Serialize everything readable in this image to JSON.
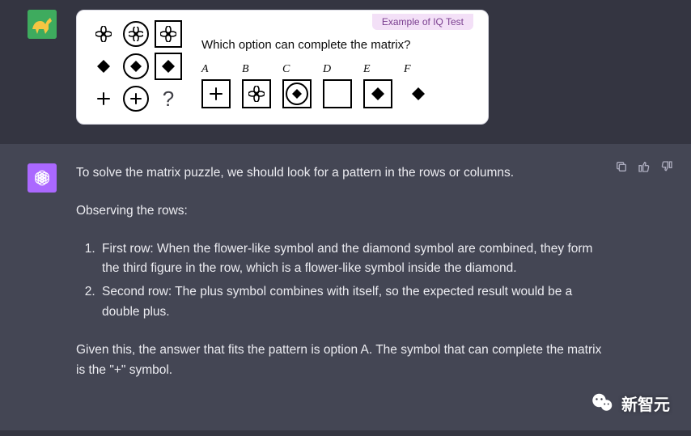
{
  "colors": {
    "page_bg": "#343541",
    "assistant_bg": "#444654",
    "text": "#ececf1",
    "card_bg": "#ffffff",
    "card_border": "#d9d9e3",
    "badge_bg": "#f3e0f7",
    "badge_text": "#7a3e8f",
    "user_avatar_bg": "#3eab5e",
    "assistant_avatar_bg": "#ab68ff",
    "icon_muted": "#acacbe",
    "shape_stroke": "#000000",
    "shape_fill": "#000000"
  },
  "iq": {
    "badge": "Example of IQ Test",
    "question": "Which option can complete the matrix?",
    "matrix_question_mark": "?",
    "grid": [
      [
        {
          "shape": "flower",
          "style": "plain"
        },
        {
          "shape": "flower",
          "style": "circled"
        },
        {
          "shape": "flower",
          "style": "boxed"
        }
      ],
      [
        {
          "shape": "diamond",
          "style": "plain"
        },
        {
          "shape": "diamond",
          "style": "circled"
        },
        {
          "shape": "diamond",
          "style": "boxed"
        }
      ],
      [
        {
          "shape": "plus",
          "style": "plain"
        },
        {
          "shape": "plus",
          "style": "circled"
        },
        {
          "shape": "question",
          "style": "plain"
        }
      ]
    ],
    "options": [
      {
        "label": "A",
        "shape": "plus",
        "container": "box"
      },
      {
        "label": "B",
        "shape": "flower",
        "container": "box"
      },
      {
        "label": "C",
        "shape": "diamond",
        "container": "circle-in-box"
      },
      {
        "label": "D",
        "shape": "none",
        "container": "box"
      },
      {
        "label": "E",
        "shape": "diamond",
        "container": "box"
      },
      {
        "label": "F",
        "shape": "diamond",
        "container": "none"
      }
    ]
  },
  "response": {
    "intro": "To solve the matrix puzzle, we should look for a pattern in the rows or columns.",
    "observe": "Observing the rows:",
    "rows": [
      "First row: When the flower-like symbol and the diamond symbol are combined, they form the third figure in the row, which is a flower-like symbol inside the diamond.",
      "Second row: The plus symbol combines with itself, so the expected result would be a double plus."
    ],
    "conclusion": "Given this, the answer that fits the pattern is option A. The symbol that can complete the matrix is the \"+\" symbol."
  },
  "watermark": {
    "text": "新智元"
  }
}
